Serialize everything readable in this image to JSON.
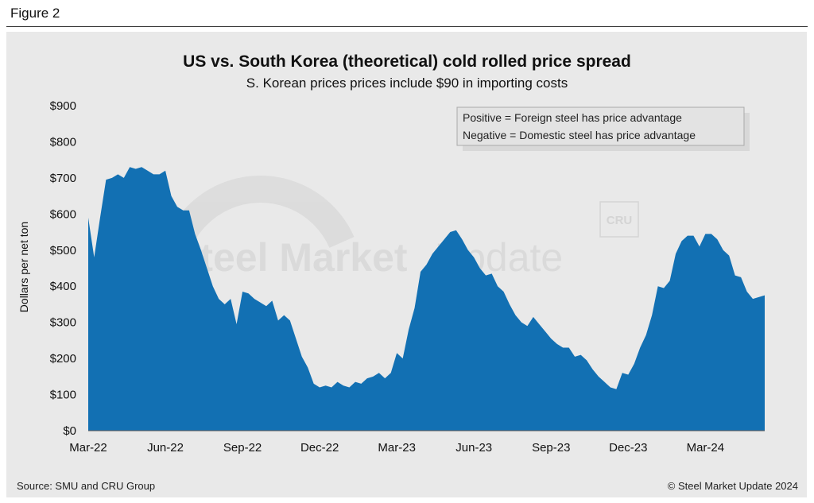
{
  "figure_label": "Figure 2",
  "watermark": {
    "brand_bold": "Steel Market",
    "brand_light": "Update",
    "logo_text": "CRU"
  },
  "footer": {
    "source": "Source: SMU and CRU Group",
    "copyright": "© Steel Market Update 2024"
  },
  "colors": {
    "fill": "#1270b3",
    "panel": "#e9e9e9"
  },
  "chart_data": {
    "type": "area",
    "title": "US vs. South Korea (theoretical) cold rolled price spread",
    "subtitle": "S. Korean prices prices include $90 in importing costs",
    "ylabel": "Dollars per net ton",
    "xlabel": "",
    "ylim": [
      0,
      900
    ],
    "y_ticks": [
      0,
      100,
      200,
      300,
      400,
      500,
      600,
      700,
      800,
      900
    ],
    "y_tick_labels": [
      "$0",
      "$100",
      "$200",
      "$300",
      "$400",
      "$500",
      "$600",
      "$700",
      "$800",
      "$900"
    ],
    "x_tick_labels": [
      "Mar-22",
      "Jun-22",
      "Sep-22",
      "Dec-22",
      "Mar-23",
      "Jun-23",
      "Sep-23",
      "Dec-23",
      "Mar-24"
    ],
    "x_tick_index": [
      0,
      13,
      26,
      39,
      52,
      65,
      78,
      91,
      104
    ],
    "grid": false,
    "legend_notes": [
      "Positive = Foreign steel has price advantage",
      "Negative = Domestic steel has price advantage"
    ],
    "legend_position": "top-right",
    "series": [
      {
        "name": "Price spread",
        "values": [
          590,
          480,
          590,
          695,
          700,
          710,
          700,
          730,
          725,
          730,
          720,
          710,
          710,
          720,
          650,
          620,
          610,
          610,
          545,
          500,
          450,
          400,
          365,
          350,
          365,
          295,
          385,
          380,
          365,
          355,
          345,
          360,
          305,
          320,
          305,
          255,
          205,
          175,
          130,
          120,
          125,
          120,
          135,
          125,
          120,
          135,
          130,
          145,
          150,
          160,
          145,
          160,
          215,
          200,
          280,
          340,
          440,
          460,
          490,
          510,
          530,
          550,
          555,
          530,
          500,
          480,
          450,
          430,
          435,
          400,
          385,
          350,
          320,
          300,
          290,
          315,
          295,
          275,
          255,
          240,
          230,
          230,
          205,
          210,
          195,
          170,
          150,
          135,
          120,
          115,
          160,
          155,
          185,
          230,
          265,
          320,
          400,
          395,
          415,
          490,
          525,
          540,
          540,
          510,
          545,
          545,
          530,
          500,
          485,
          430,
          425,
          385,
          365,
          370,
          375
        ]
      }
    ]
  }
}
